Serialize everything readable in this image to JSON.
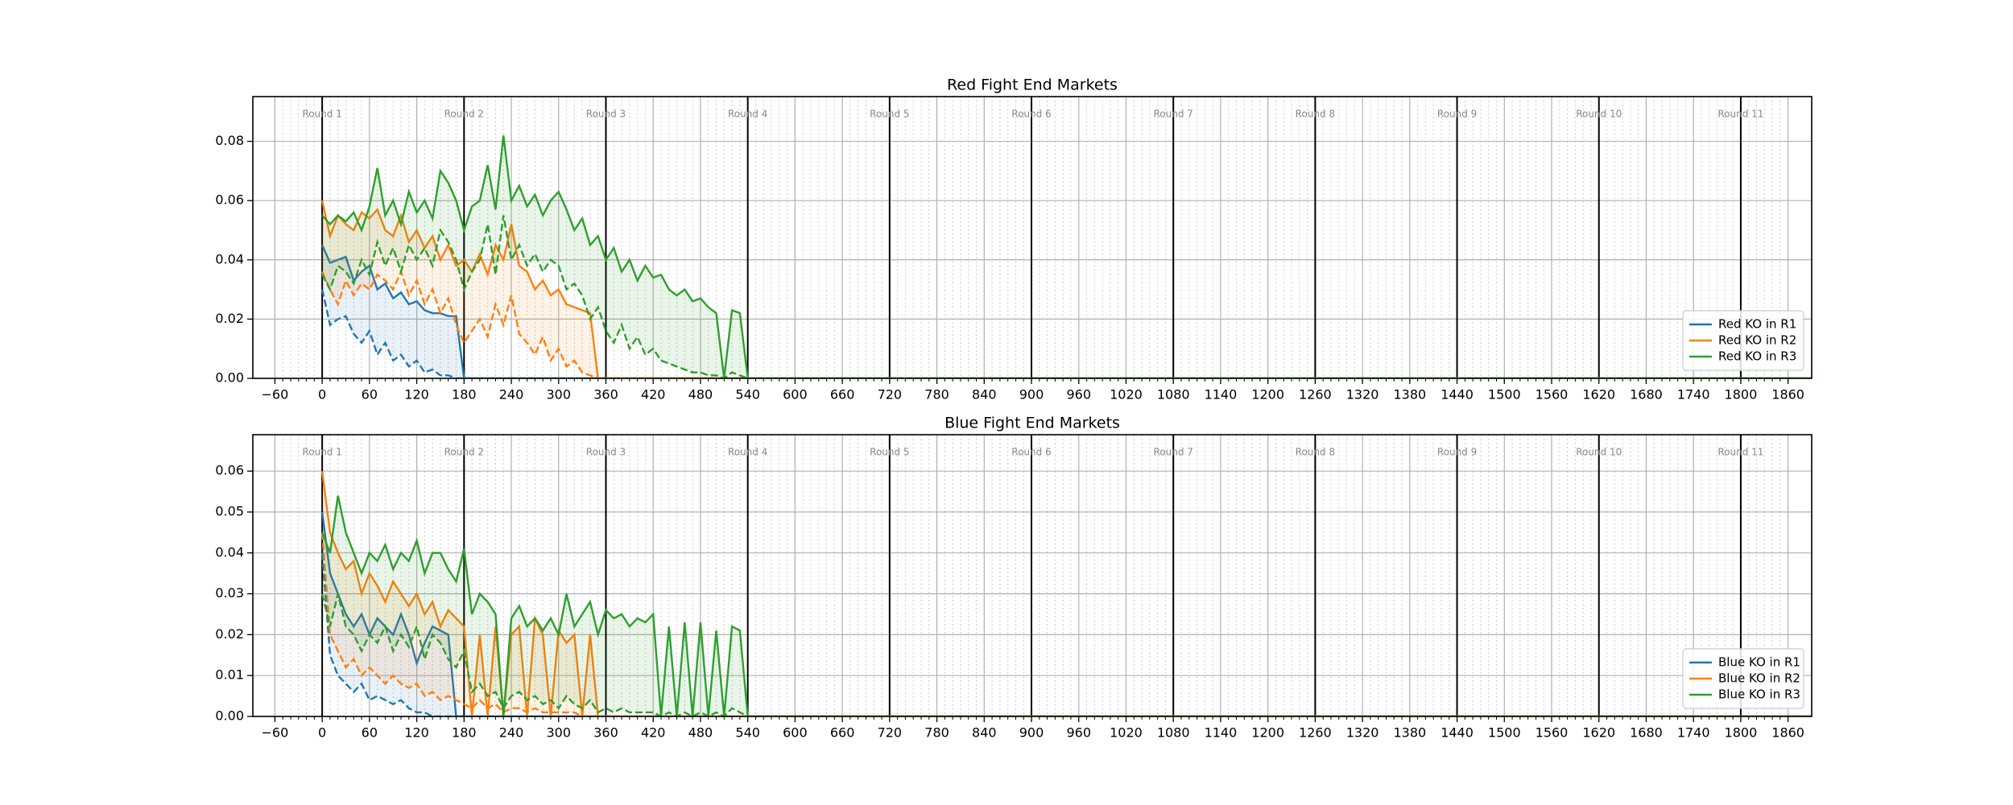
{
  "chart_data": [
    {
      "type": "line",
      "title": "Red Fight End Markets",
      "x": [
        0,
        10,
        20,
        30,
        40,
        50,
        60,
        70,
        80,
        90,
        100,
        110,
        120,
        130,
        140,
        150,
        160,
        170,
        180,
        190,
        200,
        210,
        220,
        230,
        240,
        250,
        260,
        270,
        280,
        290,
        300,
        310,
        320,
        330,
        340,
        350,
        360,
        370,
        380,
        390,
        400,
        410,
        420,
        430,
        440,
        450,
        460,
        470,
        480,
        490,
        500,
        510,
        520,
        530,
        540,
        1890
      ],
      "series": [
        {
          "name": "Red KO in R1",
          "color": "#1f77b4",
          "values": [
            0.045,
            0.039,
            0.04,
            0.041,
            0.033,
            0.036,
            0.038,
            0.03,
            0.032,
            0.027,
            0.029,
            0.025,
            0.026,
            0.023,
            0.022,
            0.022,
            0.021,
            0.021,
            0,
            0,
            0,
            0,
            0,
            0,
            0,
            0,
            0,
            0,
            0,
            0,
            0,
            0,
            0,
            0,
            0,
            0,
            0,
            0,
            0,
            0,
            0,
            0,
            0,
            0,
            0,
            0,
            0,
            0,
            0,
            0,
            0,
            0,
            0,
            0,
            0,
            0
          ],
          "lower_values": [
            0.03,
            0.018,
            0.02,
            0.021,
            0.015,
            0.012,
            0.016,
            0.008,
            0.012,
            0.006,
            0.008,
            0.004,
            0.006,
            0.002,
            0.003,
            0.001,
            0.001,
            0,
            0,
            0,
            0,
            0,
            0,
            0,
            0,
            0,
            0,
            0,
            0,
            0,
            0,
            0,
            0,
            0,
            0,
            0,
            0,
            0,
            0,
            0,
            0,
            0,
            0,
            0,
            0,
            0,
            0,
            0,
            0,
            0,
            0,
            0,
            0,
            0,
            0,
            0
          ]
        },
        {
          "name": "Red KO in R2",
          "color": "#ff7f0e",
          "values": [
            0.06,
            0.048,
            0.055,
            0.052,
            0.05,
            0.056,
            0.054,
            0.057,
            0.05,
            0.048,
            0.055,
            0.046,
            0.05,
            0.044,
            0.048,
            0.04,
            0.045,
            0.038,
            0.04,
            0.036,
            0.042,
            0.035,
            0.045,
            0.04,
            0.052,
            0.038,
            0.036,
            0.03,
            0.033,
            0.028,
            0.03,
            0.025,
            0.024,
            0.023,
            0.022,
            0,
            0,
            0,
            0,
            0,
            0,
            0,
            0,
            0,
            0,
            0,
            0,
            0,
            0,
            0,
            0,
            0,
            0,
            0,
            0,
            0
          ],
          "lower_values": [
            0.036,
            0.03,
            0.025,
            0.033,
            0.028,
            0.032,
            0.03,
            0.035,
            0.033,
            0.03,
            0.036,
            0.028,
            0.033,
            0.025,
            0.03,
            0.022,
            0.027,
            0.018,
            0.012,
            0.016,
            0.02,
            0.014,
            0.025,
            0.018,
            0.028,
            0.015,
            0.012,
            0.008,
            0.014,
            0.006,
            0.01,
            0.004,
            0.006,
            0.002,
            0.001,
            0,
            0,
            0,
            0,
            0,
            0,
            0,
            0,
            0,
            0,
            0,
            0,
            0,
            0,
            0,
            0,
            0,
            0,
            0,
            0,
            0
          ]
        },
        {
          "name": "Red KO in R3",
          "color": "#2ca02c",
          "values": [
            0.055,
            0.052,
            0.055,
            0.053,
            0.056,
            0.05,
            0.058,
            0.071,
            0.055,
            0.06,
            0.052,
            0.063,
            0.056,
            0.06,
            0.054,
            0.07,
            0.066,
            0.06,
            0.05,
            0.058,
            0.06,
            0.072,
            0.057,
            0.082,
            0.06,
            0.065,
            0.058,
            0.062,
            0.055,
            0.06,
            0.063,
            0.057,
            0.05,
            0.054,
            0.045,
            0.048,
            0.04,
            0.044,
            0.036,
            0.04,
            0.033,
            0.038,
            0.034,
            0.035,
            0.03,
            0.028,
            0.03,
            0.026,
            0.027,
            0.024,
            0.022,
            0,
            0.023,
            0.022,
            0,
            0
          ],
          "lower_values": [
            0.035,
            0.03,
            0.038,
            0.036,
            0.032,
            0.04,
            0.035,
            0.046,
            0.038,
            0.044,
            0.036,
            0.045,
            0.04,
            0.044,
            0.038,
            0.05,
            0.046,
            0.04,
            0.03,
            0.036,
            0.04,
            0.052,
            0.035,
            0.055,
            0.04,
            0.045,
            0.038,
            0.042,
            0.036,
            0.04,
            0.038,
            0.03,
            0.032,
            0.028,
            0.02,
            0.024,
            0.016,
            0.012,
            0.018,
            0.01,
            0.014,
            0.008,
            0.01,
            0.006,
            0.005,
            0.004,
            0.003,
            0.002,
            0.002,
            0.001,
            0.001,
            0,
            0.002,
            0.001,
            0,
            0
          ]
        }
      ],
      "xlim": [
        -88,
        1890
      ],
      "xticks": [
        {
          "value": -60,
          "label": "−60"
        },
        0,
        60,
        120,
        180,
        240,
        300,
        360,
        420,
        480,
        540,
        600,
        660,
        720,
        780,
        840,
        900,
        960,
        1020,
        1080,
        1140,
        1200,
        1260,
        1320,
        1380,
        1440,
        1500,
        1560,
        1620,
        1680,
        1740,
        1800,
        1860
      ],
      "ylim": [
        0,
        0.0951
      ],
      "yticks": [
        {
          "value": 0,
          "label": "0.00"
        },
        {
          "value": 0.02,
          "label": "0.02"
        },
        {
          "value": 0.04,
          "label": "0.04"
        },
        {
          "value": 0.06,
          "label": "0.06"
        },
        {
          "value": 0.08,
          "label": "0.08"
        }
      ],
      "rounds": [
        {
          "x": 0,
          "label": "Round 1"
        },
        {
          "x": 180,
          "label": "Round 2"
        },
        {
          "x": 360,
          "label": "Round 3"
        },
        {
          "x": 540,
          "label": "Round 4"
        },
        {
          "x": 720,
          "label": "Round 5"
        },
        {
          "x": 900,
          "label": "Round 6"
        },
        {
          "x": 1080,
          "label": "Round 7"
        },
        {
          "x": 1260,
          "label": "Round 8"
        },
        {
          "x": 1440,
          "label": "Round 9"
        },
        {
          "x": 1620,
          "label": "Round 10"
        },
        {
          "x": 1800,
          "label": "Round 11"
        }
      ],
      "grid": true,
      "minor_grid": true,
      "legend": "lower right"
    },
    {
      "type": "line",
      "title": "Blue Fight End Markets",
      "x": [
        0,
        10,
        20,
        30,
        40,
        50,
        60,
        70,
        80,
        90,
        100,
        110,
        120,
        130,
        140,
        150,
        160,
        170,
        180,
        190,
        200,
        210,
        220,
        230,
        240,
        250,
        260,
        270,
        280,
        290,
        300,
        310,
        320,
        330,
        340,
        350,
        360,
        370,
        380,
        390,
        400,
        410,
        420,
        430,
        440,
        450,
        460,
        470,
        480,
        490,
        500,
        510,
        520,
        530,
        540,
        1890
      ],
      "series": [
        {
          "name": "Blue KO in R1",
          "color": "#1f77b4",
          "values": [
            0.05,
            0.035,
            0.03,
            0.025,
            0.022,
            0.025,
            0.02,
            0.024,
            0.022,
            0.02,
            0.025,
            0.02,
            0.013,
            0.018,
            0.022,
            0.021,
            0.02,
            0,
            0,
            0,
            0,
            0,
            0,
            0,
            0,
            0,
            0,
            0,
            0,
            0,
            0,
            0,
            0,
            0,
            0,
            0,
            0,
            0,
            0,
            0,
            0,
            0,
            0,
            0,
            0,
            0,
            0,
            0,
            0,
            0,
            0,
            0,
            0,
            0,
            0,
            0
          ],
          "lower_values": [
            0.04,
            0.015,
            0.01,
            0.008,
            0.006,
            0.008,
            0.004,
            0.005,
            0.004,
            0.003,
            0.004,
            0.002,
            0.001,
            0.001,
            0,
            0,
            0,
            0,
            0,
            0,
            0,
            0,
            0,
            0,
            0,
            0,
            0,
            0,
            0,
            0,
            0,
            0,
            0,
            0,
            0,
            0,
            0,
            0,
            0,
            0,
            0,
            0,
            0,
            0,
            0,
            0,
            0,
            0,
            0,
            0,
            0,
            0,
            0,
            0,
            0,
            0
          ]
        },
        {
          "name": "Blue KO in R2",
          "color": "#ff7f0e",
          "values": [
            0.06,
            0.045,
            0.04,
            0.036,
            0.038,
            0.03,
            0.035,
            0.032,
            0.028,
            0.033,
            0.03,
            0.027,
            0.03,
            0.025,
            0.028,
            0.022,
            0.026,
            0.024,
            0.022,
            0,
            0.02,
            0,
            0.022,
            0,
            0.02,
            0.022,
            0,
            0.024,
            0.02,
            0,
            0.021,
            0.018,
            0.02,
            0,
            0.02,
            0,
            0,
            0,
            0,
            0,
            0,
            0,
            0,
            0,
            0,
            0,
            0,
            0,
            0,
            0,
            0,
            0,
            0,
            0,
            0,
            0
          ],
          "lower_values": [
            0.045,
            0.02,
            0.016,
            0.012,
            0.014,
            0.01,
            0.012,
            0.01,
            0.008,
            0.01,
            0.008,
            0.007,
            0.008,
            0.005,
            0.006,
            0.004,
            0.005,
            0.004,
            0.003,
            0.002,
            0.004,
            0.002,
            0.003,
            0.001,
            0.002,
            0.002,
            0.001,
            0.002,
            0.001,
            0.001,
            0.001,
            0.001,
            0.001,
            0,
            0,
            0,
            0,
            0,
            0,
            0,
            0,
            0,
            0,
            0,
            0,
            0,
            0,
            0,
            0,
            0,
            0,
            0,
            0,
            0,
            0,
            0
          ]
        },
        {
          "name": "Blue KO in R3",
          "color": "#2ca02c",
          "values": [
            0.045,
            0.04,
            0.054,
            0.045,
            0.04,
            0.035,
            0.04,
            0.038,
            0.042,
            0.036,
            0.04,
            0.038,
            0.043,
            0.035,
            0.04,
            0.04,
            0.036,
            0.033,
            0.041,
            0.025,
            0.03,
            0.028,
            0.025,
            0,
            0.024,
            0.027,
            0.022,
            0.024,
            0.021,
            0.024,
            0.02,
            0.03,
            0.022,
            0.025,
            0.028,
            0.02,
            0.026,
            0.024,
            0.025,
            0.022,
            0.024,
            0.023,
            0.025,
            0,
            0.022,
            0,
            0.023,
            0,
            0.023,
            0,
            0.021,
            0,
            0.022,
            0.021,
            0,
            0
          ],
          "lower_values": [
            0.03,
            0.022,
            0.03,
            0.022,
            0.02,
            0.016,
            0.02,
            0.018,
            0.022,
            0.016,
            0.02,
            0.017,
            0.022,
            0.014,
            0.02,
            0.018,
            0.014,
            0.012,
            0.016,
            0.006,
            0.008,
            0.005,
            0.006,
            0.002,
            0.005,
            0.006,
            0.004,
            0.005,
            0.003,
            0.004,
            0.002,
            0.005,
            0.003,
            0.002,
            0.004,
            0.001,
            0.002,
            0.001,
            0.002,
            0.001,
            0.001,
            0.001,
            0.001,
            0,
            0.001,
            0,
            0.001,
            0,
            0.001,
            0,
            0.001,
            0,
            0.002,
            0.001,
            0,
            0
          ]
        }
      ],
      "xlim": [
        -88,
        1890
      ],
      "xticks": [
        {
          "value": -60,
          "label": "−60"
        },
        0,
        60,
        120,
        180,
        240,
        300,
        360,
        420,
        480,
        540,
        600,
        660,
        720,
        780,
        840,
        900,
        960,
        1020,
        1080,
        1140,
        1200,
        1260,
        1320,
        1380,
        1440,
        1500,
        1560,
        1620,
        1680,
        1740,
        1800,
        1860
      ],
      "ylim": [
        0,
        0.0689
      ],
      "yticks": [
        {
          "value": 0,
          "label": "0.00"
        },
        {
          "value": 0.01,
          "label": "0.01"
        },
        {
          "value": 0.02,
          "label": "0.02"
        },
        {
          "value": 0.03,
          "label": "0.03"
        },
        {
          "value": 0.04,
          "label": "0.04"
        },
        {
          "value": 0.05,
          "label": "0.05"
        },
        {
          "value": 0.06,
          "label": "0.06"
        }
      ],
      "rounds": [
        {
          "x": 0,
          "label": "Round 1"
        },
        {
          "x": 180,
          "label": "Round 2"
        },
        {
          "x": 360,
          "label": "Round 3"
        },
        {
          "x": 540,
          "label": "Round 4"
        },
        {
          "x": 720,
          "label": "Round 5"
        },
        {
          "x": 900,
          "label": "Round 6"
        },
        {
          "x": 1080,
          "label": "Round 7"
        },
        {
          "x": 1260,
          "label": "Round 8"
        },
        {
          "x": 1440,
          "label": "Round 9"
        },
        {
          "x": 1620,
          "label": "Round 10"
        },
        {
          "x": 1800,
          "label": "Round 11"
        }
      ],
      "grid": true,
      "minor_grid": true,
      "legend": "lower right"
    }
  ]
}
